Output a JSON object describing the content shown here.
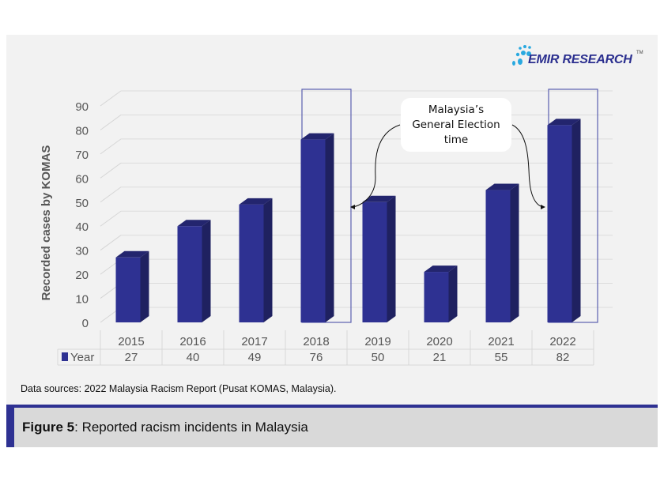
{
  "logo": {
    "text": "EMIR RESEARCH",
    "tm": "TM"
  },
  "chart_data": {
    "type": "bar",
    "categories": [
      "2015",
      "2016",
      "2017",
      "2018",
      "2019",
      "2020",
      "2021",
      "2022"
    ],
    "series": [
      {
        "name": "Year",
        "values": [
          27,
          40,
          49,
          76,
          50,
          21,
          55,
          82
        ]
      }
    ],
    "ylabel": "Recorded cases by KOMAS",
    "ylim": [
      0,
      90
    ],
    "yticks": [
      0,
      10,
      20,
      30,
      40,
      50,
      60,
      70,
      80,
      90
    ],
    "grid": true,
    "style": "3d-columns with data table",
    "highlighted": [
      "2018",
      "2022"
    ],
    "annotation": "Malaysia’s General Election time",
    "bar_color": "#2e3192"
  },
  "annotation_lines": [
    "Malaysia’s",
    "General Election",
    "time"
  ],
  "source": "Data sources: 2022 Malaysia Racism Report (Pusat KOMAS, Malaysia).",
  "caption": {
    "label": "Figure 5",
    "text": ": Reported racism incidents in Malaysia"
  },
  "colors": {
    "accent": "#2e3192",
    "card": "#f2f2f2",
    "caption_bg": "#d9d9d9"
  }
}
